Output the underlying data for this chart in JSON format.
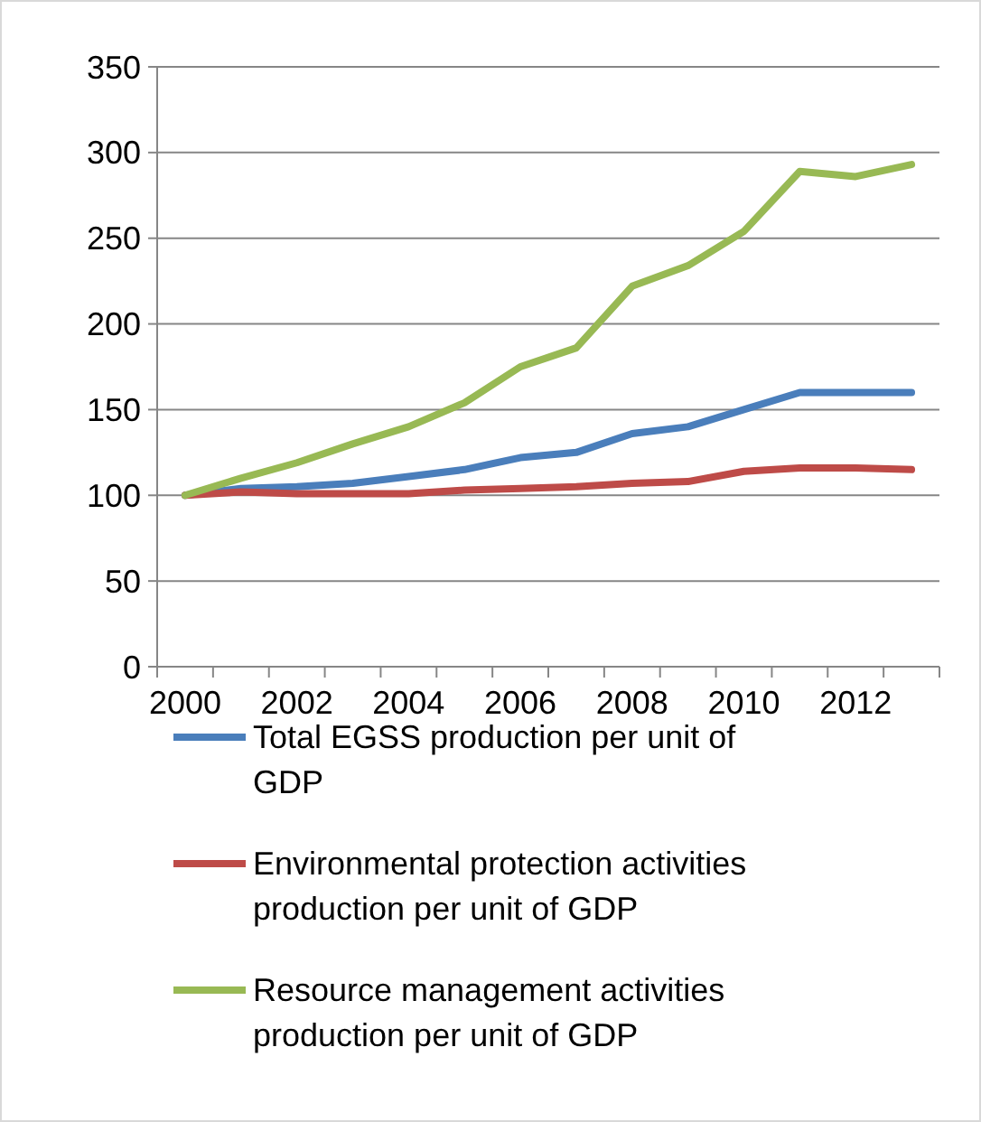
{
  "chart_data": {
    "type": "line",
    "categories": [
      "2000",
      null,
      "2002",
      null,
      "2004",
      null,
      "2006",
      null,
      "2008",
      null,
      "2010",
      null,
      "2012",
      null
    ],
    "series": [
      {
        "name": "Total EGSS production per unit of GDP",
        "color": "#4a7ebb",
        "values": [
          100,
          104,
          105,
          107,
          111,
          115,
          122,
          125,
          136,
          140,
          150,
          160,
          160,
          160
        ]
      },
      {
        "name": "Environmental protection activities production per unit of GDP",
        "color": "#be4b48",
        "values": [
          100,
          102,
          101,
          101,
          101,
          103,
          104,
          105,
          107,
          108,
          114,
          116,
          116,
          115
        ]
      },
      {
        "name": "Resource management activities production per unit of GDP",
        "color": "#98b954",
        "values": [
          100,
          110,
          119,
          130,
          140,
          154,
          175,
          186,
          222,
          234,
          254,
          289,
          286,
          293
        ]
      }
    ],
    "ylim": [
      0,
      350
    ],
    "yticks": [
      0,
      50,
      100,
      150,
      200,
      250,
      300,
      350
    ],
    "grid": "y",
    "legend": "bottom",
    "marker": "none",
    "line_style": "solid"
  }
}
